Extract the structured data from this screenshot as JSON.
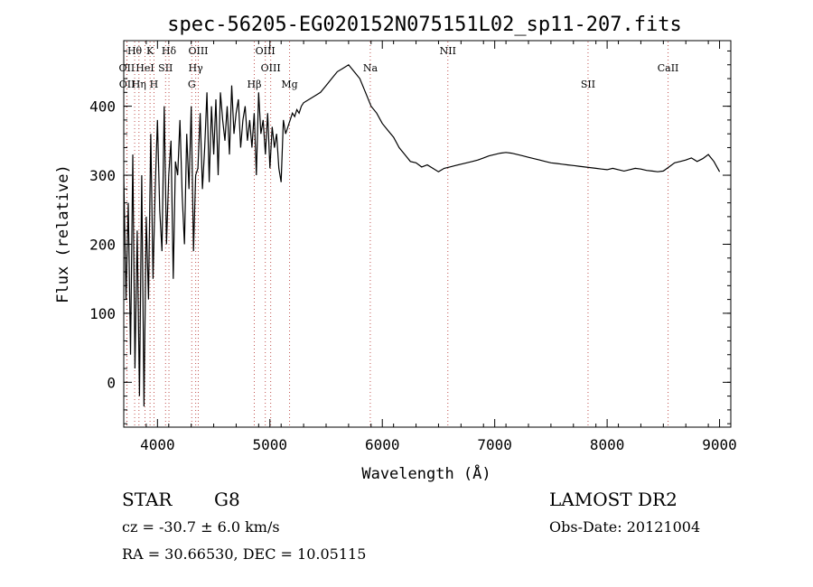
{
  "chart_data": {
    "type": "line",
    "title": "spec-56205-EG020152N075151L02_sp11-207.fits",
    "xlabel": "Wavelength (Å)",
    "ylabel": "Flux (relative)",
    "xlim": [
      3700,
      9100
    ],
    "ylim": [
      -65,
      495
    ],
    "xticks": [
      4000,
      5000,
      6000,
      7000,
      8000,
      9000
    ],
    "yticks": [
      0,
      100,
      200,
      300,
      400
    ],
    "grid": false,
    "line_color": "#000000",
    "marker_color": "#c0504d",
    "series": [
      {
        "x": [
          3700,
          3720,
          3740,
          3760,
          3780,
          3800,
          3820,
          3840,
          3860,
          3880,
          3900,
          3920,
          3940,
          3960,
          3980,
          4000,
          4020,
          4040,
          4060,
          4080,
          4100,
          4120,
          4140,
          4160,
          4180,
          4200,
          4220,
          4240,
          4260,
          4280,
          4300,
          4320,
          4340,
          4360,
          4380,
          4400,
          4420,
          4440,
          4460,
          4480,
          4500,
          4520,
          4540,
          4560,
          4580,
          4600,
          4620,
          4640,
          4660,
          4680,
          4700,
          4720,
          4740,
          4760,
          4780,
          4800,
          4820,
          4840,
          4860,
          4880,
          4900,
          4920,
          4940,
          4960,
          4980,
          5000,
          5020,
          5040,
          5060,
          5080,
          5100,
          5120,
          5140,
          5160,
          5180,
          5200,
          5220,
          5240,
          5260,
          5280,
          5300,
          5350,
          5400,
          5450,
          5500,
          5550,
          5600,
          5650,
          5700,
          5750,
          5800,
          5850,
          5900,
          5950,
          6000,
          6050,
          6100,
          6150,
          6200,
          6250,
          6300,
          6350,
          6400,
          6450,
          6500,
          6550,
          6600,
          6650,
          6700,
          6750,
          6800,
          6850,
          6900,
          6950,
          7000,
          7050,
          7100,
          7150,
          7200,
          7250,
          7300,
          7350,
          7400,
          7450,
          7500,
          7550,
          7600,
          7650,
          7700,
          7750,
          7800,
          7850,
          7900,
          7950,
          8000,
          8050,
          8100,
          8150,
          8200,
          8250,
          8300,
          8350,
          8400,
          8450,
          8500,
          8550,
          8600,
          8650,
          8700,
          8750,
          8800,
          8850,
          8900,
          8950,
          9000
        ],
        "y": [
          300,
          120,
          260,
          40,
          330,
          20,
          220,
          -20,
          300,
          -35,
          240,
          120,
          360,
          150,
          280,
          380,
          250,
          190,
          400,
          200,
          300,
          350,
          150,
          320,
          300,
          380,
          270,
          200,
          360,
          280,
          400,
          190,
          300,
          310,
          390,
          280,
          340,
          420,
          290,
          400,
          330,
          410,
          300,
          420,
          380,
          350,
          400,
          330,
          430,
          360,
          390,
          410,
          340,
          380,
          400,
          350,
          380,
          340,
          390,
          300,
          420,
          360,
          380,
          330,
          390,
          310,
          370,
          340,
          360,
          310,
          290,
          380,
          360,
          370,
          380,
          390,
          385,
          395,
          390,
          400,
          405,
          410,
          415,
          420,
          430,
          440,
          450,
          455,
          460,
          450,
          440,
          420,
          400,
          390,
          375,
          365,
          355,
          340,
          330,
          320,
          318,
          312,
          315,
          310,
          305,
          310,
          312,
          314,
          316,
          318,
          320,
          322,
          325,
          328,
          330,
          332,
          333,
          332,
          330,
          328,
          326,
          324,
          322,
          320,
          318,
          317,
          316,
          315,
          314,
          313,
          312,
          311,
          310,
          309,
          308,
          310,
          308,
          306,
          308,
          310,
          309,
          307,
          306,
          305,
          306,
          312,
          318,
          320,
          322,
          325,
          320,
          324,
          330,
          320,
          305
        ]
      }
    ],
    "markers_top": [
      {
        "label": "Hθ",
        "x": 3797
      },
      {
        "label": "K",
        "x": 3934
      },
      {
        "label": "Hδ",
        "x": 4102
      },
      {
        "label": "OIII",
        "x": 4363
      },
      {
        "label": "OIII",
        "x": 4959
      },
      {
        "label": "NII",
        "x": 6583
      }
    ],
    "markers_mid": [
      {
        "label": "OII",
        "x": 3727
      },
      {
        "label": "HeI",
        "x": 3889
      },
      {
        "label": "SII",
        "x": 4072
      },
      {
        "label": "Hγ",
        "x": 4340
      },
      {
        "label": "OIII",
        "x": 5007
      },
      {
        "label": "Na",
        "x": 5893
      },
      {
        "label": "CaII",
        "x": 8542
      }
    ],
    "markers_low": [
      {
        "label": "OII",
        "x": 3729
      },
      {
        "label": "Hη",
        "x": 3835
      },
      {
        "label": "H",
        "x": 3969
      },
      {
        "label": "G",
        "x": 4305
      },
      {
        "label": "Hβ",
        "x": 4861
      },
      {
        "label": "Mg",
        "x": 5175
      },
      {
        "label": "SII",
        "x": 7830
      }
    ]
  },
  "info": {
    "class": "STAR",
    "subclass": "G8",
    "survey": "LAMOST DR2",
    "cz": "cz = -30.7 ± 6.0 km/s",
    "obs_date": "Obs-Date: 20121004",
    "coords": "RA =  30.66530, DEC =  10.05115"
  }
}
